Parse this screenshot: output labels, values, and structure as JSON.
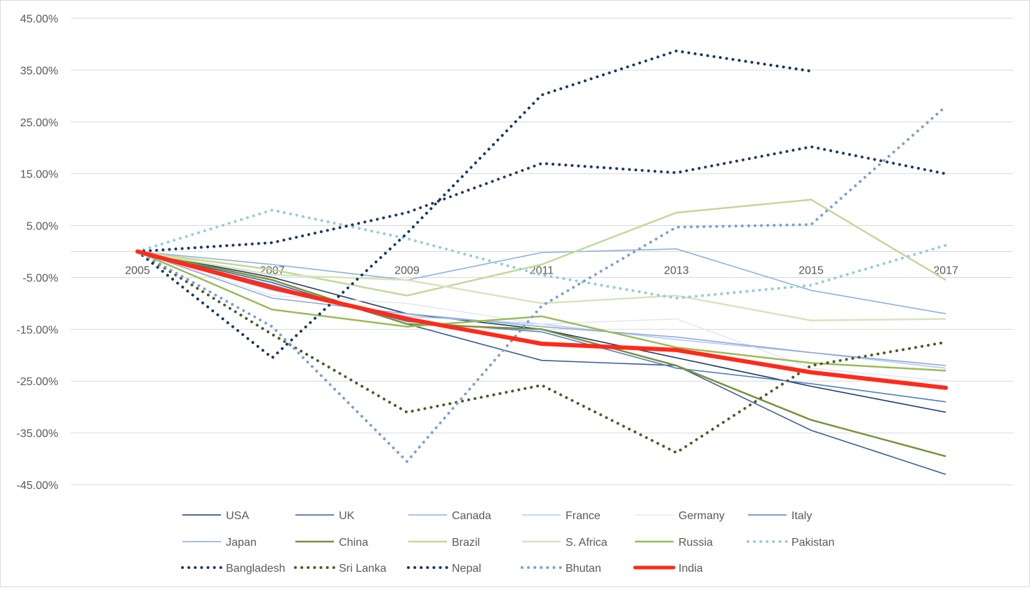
{
  "chart_data": {
    "type": "line",
    "title": "",
    "xlabel": "",
    "ylabel": "",
    "categories": [
      "2005",
      "2007",
      "2009",
      "2011",
      "2013",
      "2015",
      "2017"
    ],
    "ylim": [
      -0.45,
      0.45
    ],
    "yticks": [
      0.45,
      0.35,
      0.25,
      0.15,
      0.05,
      -0.05,
      -0.15,
      -0.25,
      -0.35,
      -0.45
    ],
    "ytick_labels": [
      "45.00%",
      "35.00%",
      "25.00%",
      "15.00%",
      "5.00%",
      "-5.00%",
      "-15.00%",
      "-25.00%",
      "-35.00%",
      "-45.00%"
    ],
    "grid": true,
    "legend_position": "bottom",
    "series": [
      {
        "name": "USA",
        "color": "#1f3a64",
        "style": "solid",
        "width": "thin",
        "values": [
          0,
          -0.05,
          -0.12,
          -0.15,
          -0.205,
          -0.26,
          -0.31
        ]
      },
      {
        "name": "UK",
        "color": "#3b5f95",
        "style": "solid",
        "width": "thin",
        "values": [
          0,
          -0.06,
          -0.14,
          -0.21,
          -0.22,
          -0.345,
          -0.43
        ]
      },
      {
        "name": "Canada",
        "color": "#8fb1de",
        "style": "solid",
        "width": "thin",
        "values": [
          0,
          -0.025,
          -0.055,
          -0.002,
          0.005,
          -0.075,
          -0.12
        ]
      },
      {
        "name": "France",
        "color": "#b4cce9",
        "style": "solid",
        "width": "thin",
        "values": [
          0,
          -0.075,
          -0.125,
          -0.14,
          -0.17,
          -0.195,
          -0.225
        ]
      },
      {
        "name": "Germany",
        "color": "#e3e8f2",
        "style": "solid",
        "width": "thin",
        "values": [
          0,
          -0.085,
          -0.1,
          -0.14,
          -0.13,
          -0.225,
          -0.25
        ]
      },
      {
        "name": "Italy",
        "color": "#4f81bd",
        "style": "solid",
        "width": "thin",
        "values": [
          0,
          -0.065,
          -0.135,
          -0.155,
          -0.225,
          -0.255,
          -0.29
        ]
      },
      {
        "name": "Japan",
        "color": "#8fa9de",
        "style": "solid",
        "width": "thin",
        "values": [
          0,
          -0.09,
          -0.12,
          -0.145,
          -0.165,
          -0.195,
          -0.22
        ]
      },
      {
        "name": "China",
        "color": "#76923c",
        "style": "solid",
        "width": "medium",
        "values": [
          0,
          -0.055,
          -0.14,
          -0.15,
          -0.22,
          -0.325,
          -0.395
        ]
      },
      {
        "name": "Brazil",
        "color": "#c4d79b",
        "style": "solid",
        "width": "medium",
        "values": [
          0,
          -0.035,
          -0.085,
          -0.025,
          0.075,
          0.1,
          -0.055
        ]
      },
      {
        "name": "S. Africa",
        "color": "#d8e4bc",
        "style": "solid",
        "width": "medium",
        "values": [
          0,
          -0.045,
          -0.055,
          -0.1,
          -0.085,
          -0.133,
          -0.13
        ]
      },
      {
        "name": "Russia",
        "color": "#9bbb59",
        "style": "solid",
        "width": "medium",
        "values": [
          0,
          -0.112,
          -0.145,
          -0.125,
          -0.185,
          -0.215,
          -0.23
        ]
      },
      {
        "name": "Pakistan",
        "color": "#92cddc",
        "style": "dotted",
        "width": "dotted",
        "values": [
          0,
          0.08,
          0.025,
          -0.045,
          -0.09,
          -0.065,
          0.012
        ]
      },
      {
        "name": "Bangladesh",
        "color": "#1f3a64",
        "style": "dotted",
        "width": "dotted",
        "values": [
          0,
          0.017,
          0.075,
          0.17,
          0.152,
          0.202,
          0.15
        ]
      },
      {
        "name": "Sri Lanka",
        "color": "#4f5a28",
        "style": "dotted",
        "width": "dotted",
        "values": [
          0,
          -0.16,
          -0.31,
          -0.258,
          -0.388,
          -0.22,
          -0.175
        ]
      },
      {
        "name": "Nepal",
        "color": "#17375e",
        "style": "dotted",
        "width": "dotted",
        "values": [
          0,
          -0.205,
          0.035,
          0.302,
          0.387,
          0.348,
          null
        ]
      },
      {
        "name": "Bhutan",
        "color": "#7ba1cf",
        "style": "dotted",
        "width": "dotted",
        "values": [
          0,
          -0.145,
          -0.405,
          -0.105,
          0.047,
          0.052,
          0.28
        ]
      },
      {
        "name": "India",
        "color": "#ff2a1a",
        "style": "solid",
        "width": "thick",
        "values": [
          0,
          -0.07,
          -0.13,
          -0.178,
          -0.19,
          -0.233,
          -0.263
        ]
      }
    ]
  }
}
